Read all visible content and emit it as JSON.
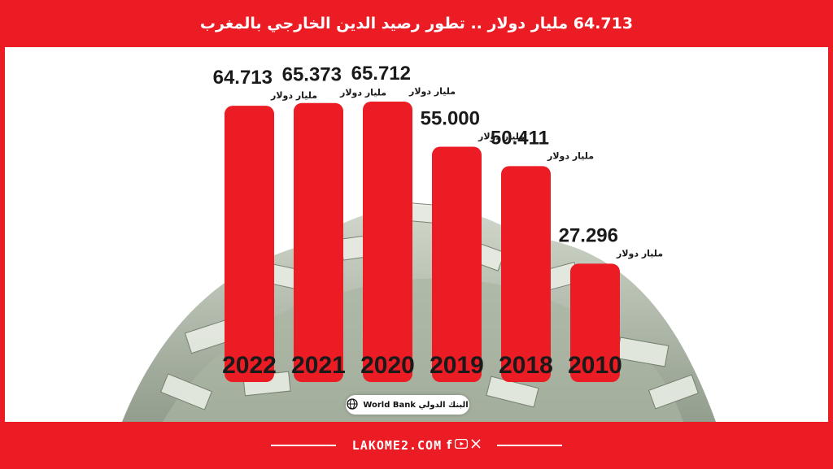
{
  "header": {
    "title": "64.713 مليار دولار .. تطور رصيد الدين الخارجي بالمغرب"
  },
  "source": {
    "label": "World Bank البنك الدولي",
    "icon": "globe-icon"
  },
  "footer": {
    "site": "LAKOME2.COM",
    "social_icons": [
      "facebook-icon",
      "youtube-icon",
      "x-icon"
    ]
  },
  "colors": {
    "accent": "#ec1c24",
    "text": "#1a1a1a"
  },
  "chart_data": {
    "type": "bar",
    "categories": [
      "2022",
      "2021",
      "2020",
      "2019",
      "2018",
      "2010"
    ],
    "values": [
      64.713,
      65.373,
      65.712,
      55.0,
      50.411,
      27.296
    ],
    "value_labels": [
      "64.713",
      "65.373",
      "65.712",
      "55.000",
      "50.411",
      "27.296"
    ],
    "unit": "مليار دولار",
    "title": "64.713 مليار دولار .. تطور رصيد الدين الخارجي بالمغرب",
    "xlabel": "",
    "ylabel": "",
    "ylim": [
      0,
      70
    ],
    "grid": false,
    "legend": "none"
  }
}
